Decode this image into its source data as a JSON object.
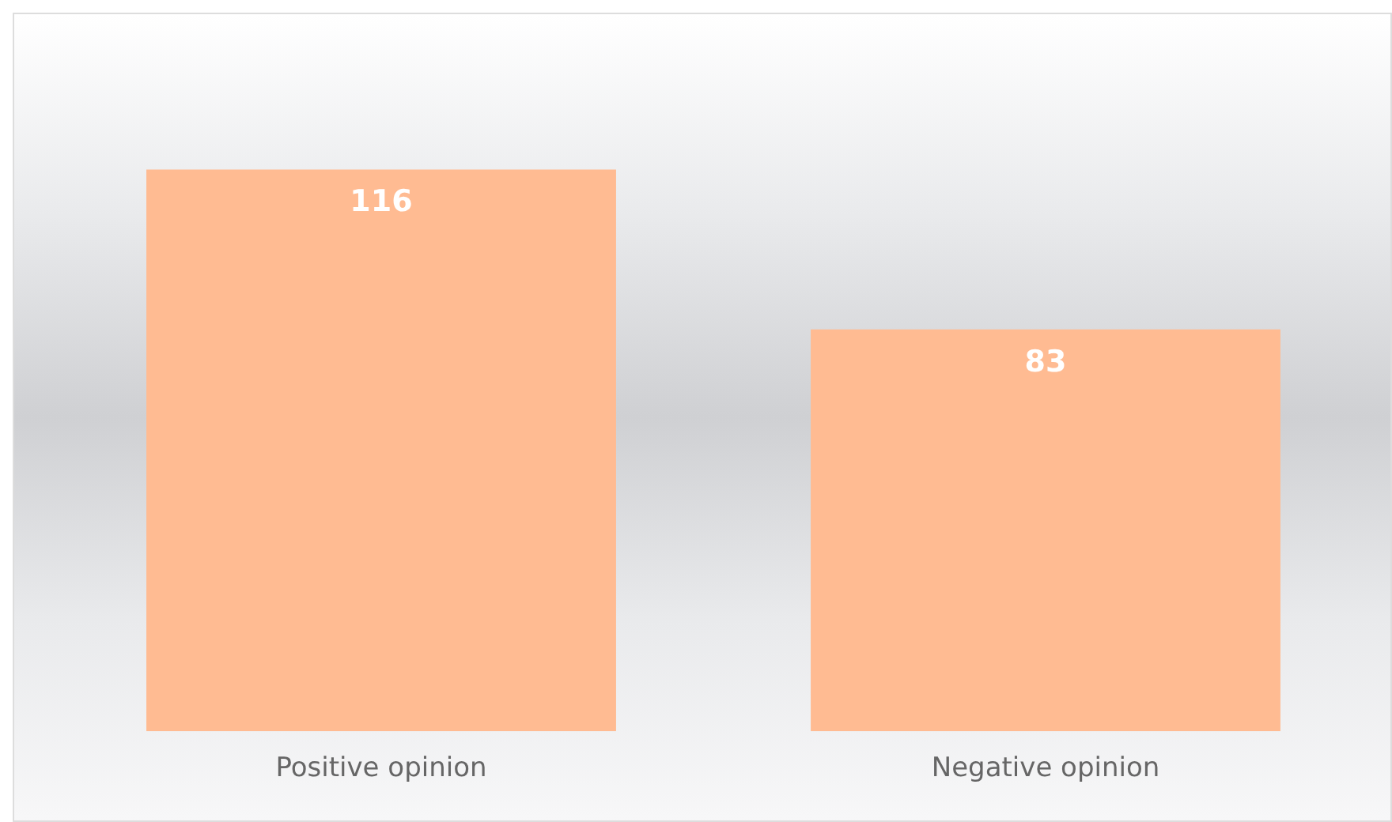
{
  "chart_data": {
    "type": "bar",
    "categories": [
      "Positive opinion",
      "Negative opinion"
    ],
    "values": [
      116,
      83
    ],
    "color": "#ffbb92",
    "data_labels": true,
    "grid": false,
    "legend": false
  }
}
